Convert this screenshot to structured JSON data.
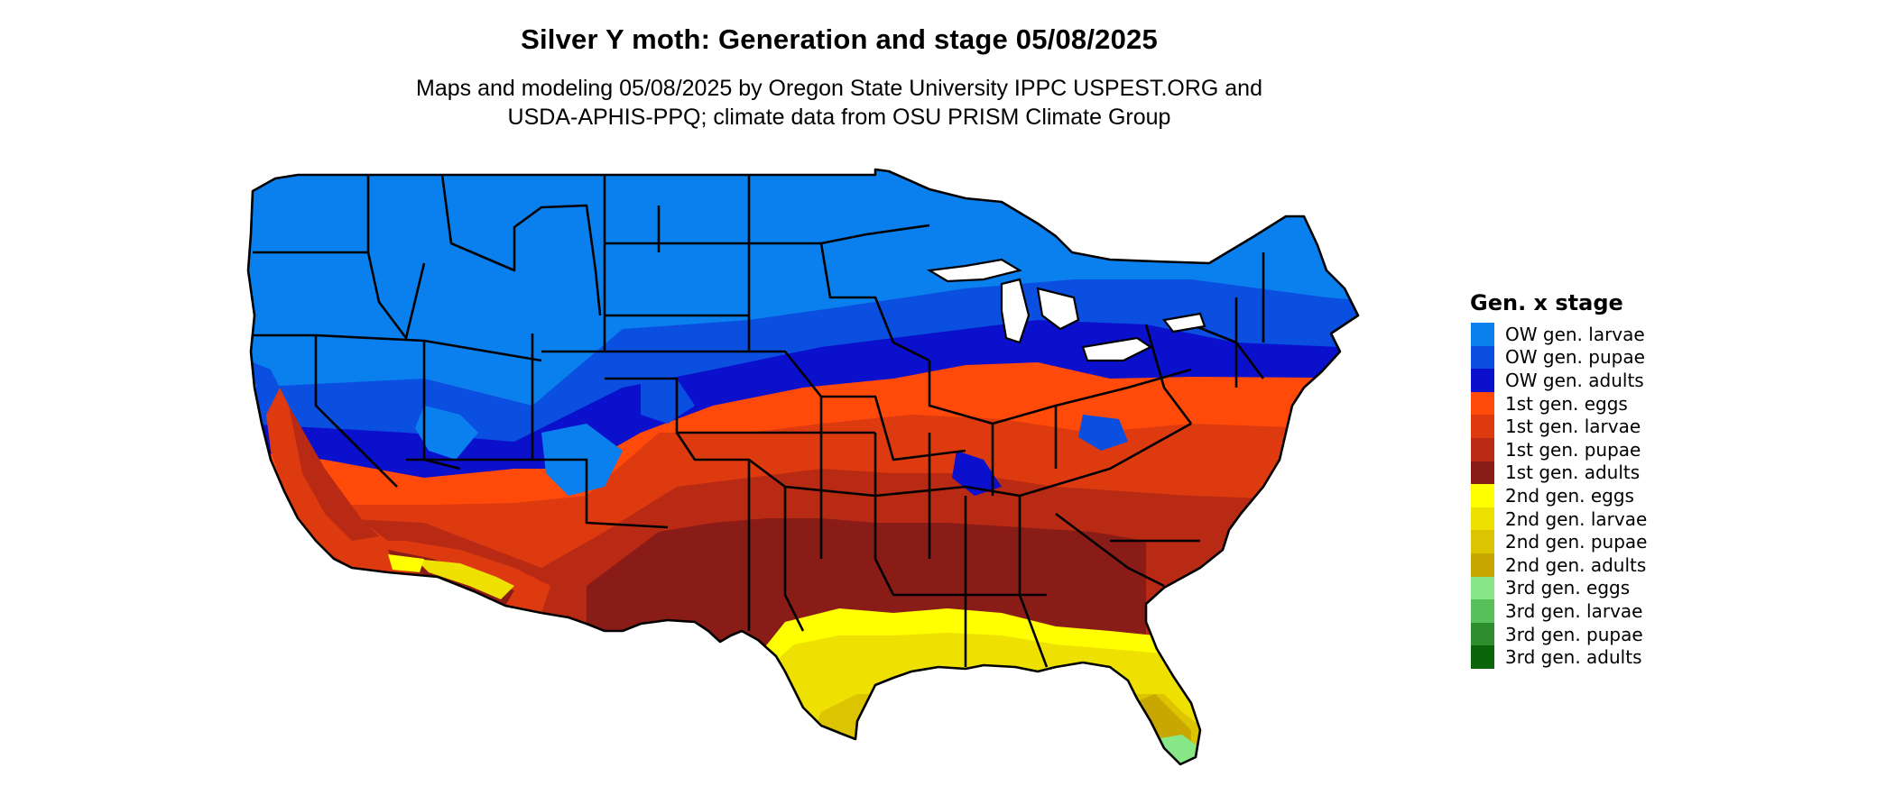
{
  "title": "Silver Y moth: Generation and stage 05/08/2025",
  "subtitle_line1": "Maps and modeling 05/08/2025 by Oregon State University IPPC USPEST.ORG and",
  "subtitle_line2": "USDA-APHIS-PPQ; climate data from OSU PRISM Climate Group",
  "legend": {
    "title": "Gen. x stage",
    "items": [
      {
        "label": "OW gen. larvae",
        "color": "#0a80ee"
      },
      {
        "label": "OW gen. pupae",
        "color": "#0a4fe0"
      },
      {
        "label": "OW gen. adults",
        "color": "#0a10cc"
      },
      {
        "label": "1st gen. eggs",
        "color": "#ff4a0a"
      },
      {
        "label": "1st gen. larvae",
        "color": "#dd3a10"
      },
      {
        "label": "1st gen. pupae",
        "color": "#b82a14"
      },
      {
        "label": "1st gen. adults",
        "color": "#8a1c18"
      },
      {
        "label": "2nd gen. eggs",
        "color": "#ffff00"
      },
      {
        "label": "2nd gen. larvae",
        "color": "#eee000"
      },
      {
        "label": "2nd gen. pupae",
        "color": "#ddc400"
      },
      {
        "label": "2nd gen. adults",
        "color": "#c8a800"
      },
      {
        "label": "3rd gen. eggs",
        "color": "#88e888"
      },
      {
        "label": "3rd gen. larvae",
        "color": "#58c058"
      },
      {
        "label": "3rd gen. pupae",
        "color": "#2e8e2e"
      },
      {
        "label": "3rd gen. adults",
        "color": "#0a640a"
      }
    ]
  }
}
